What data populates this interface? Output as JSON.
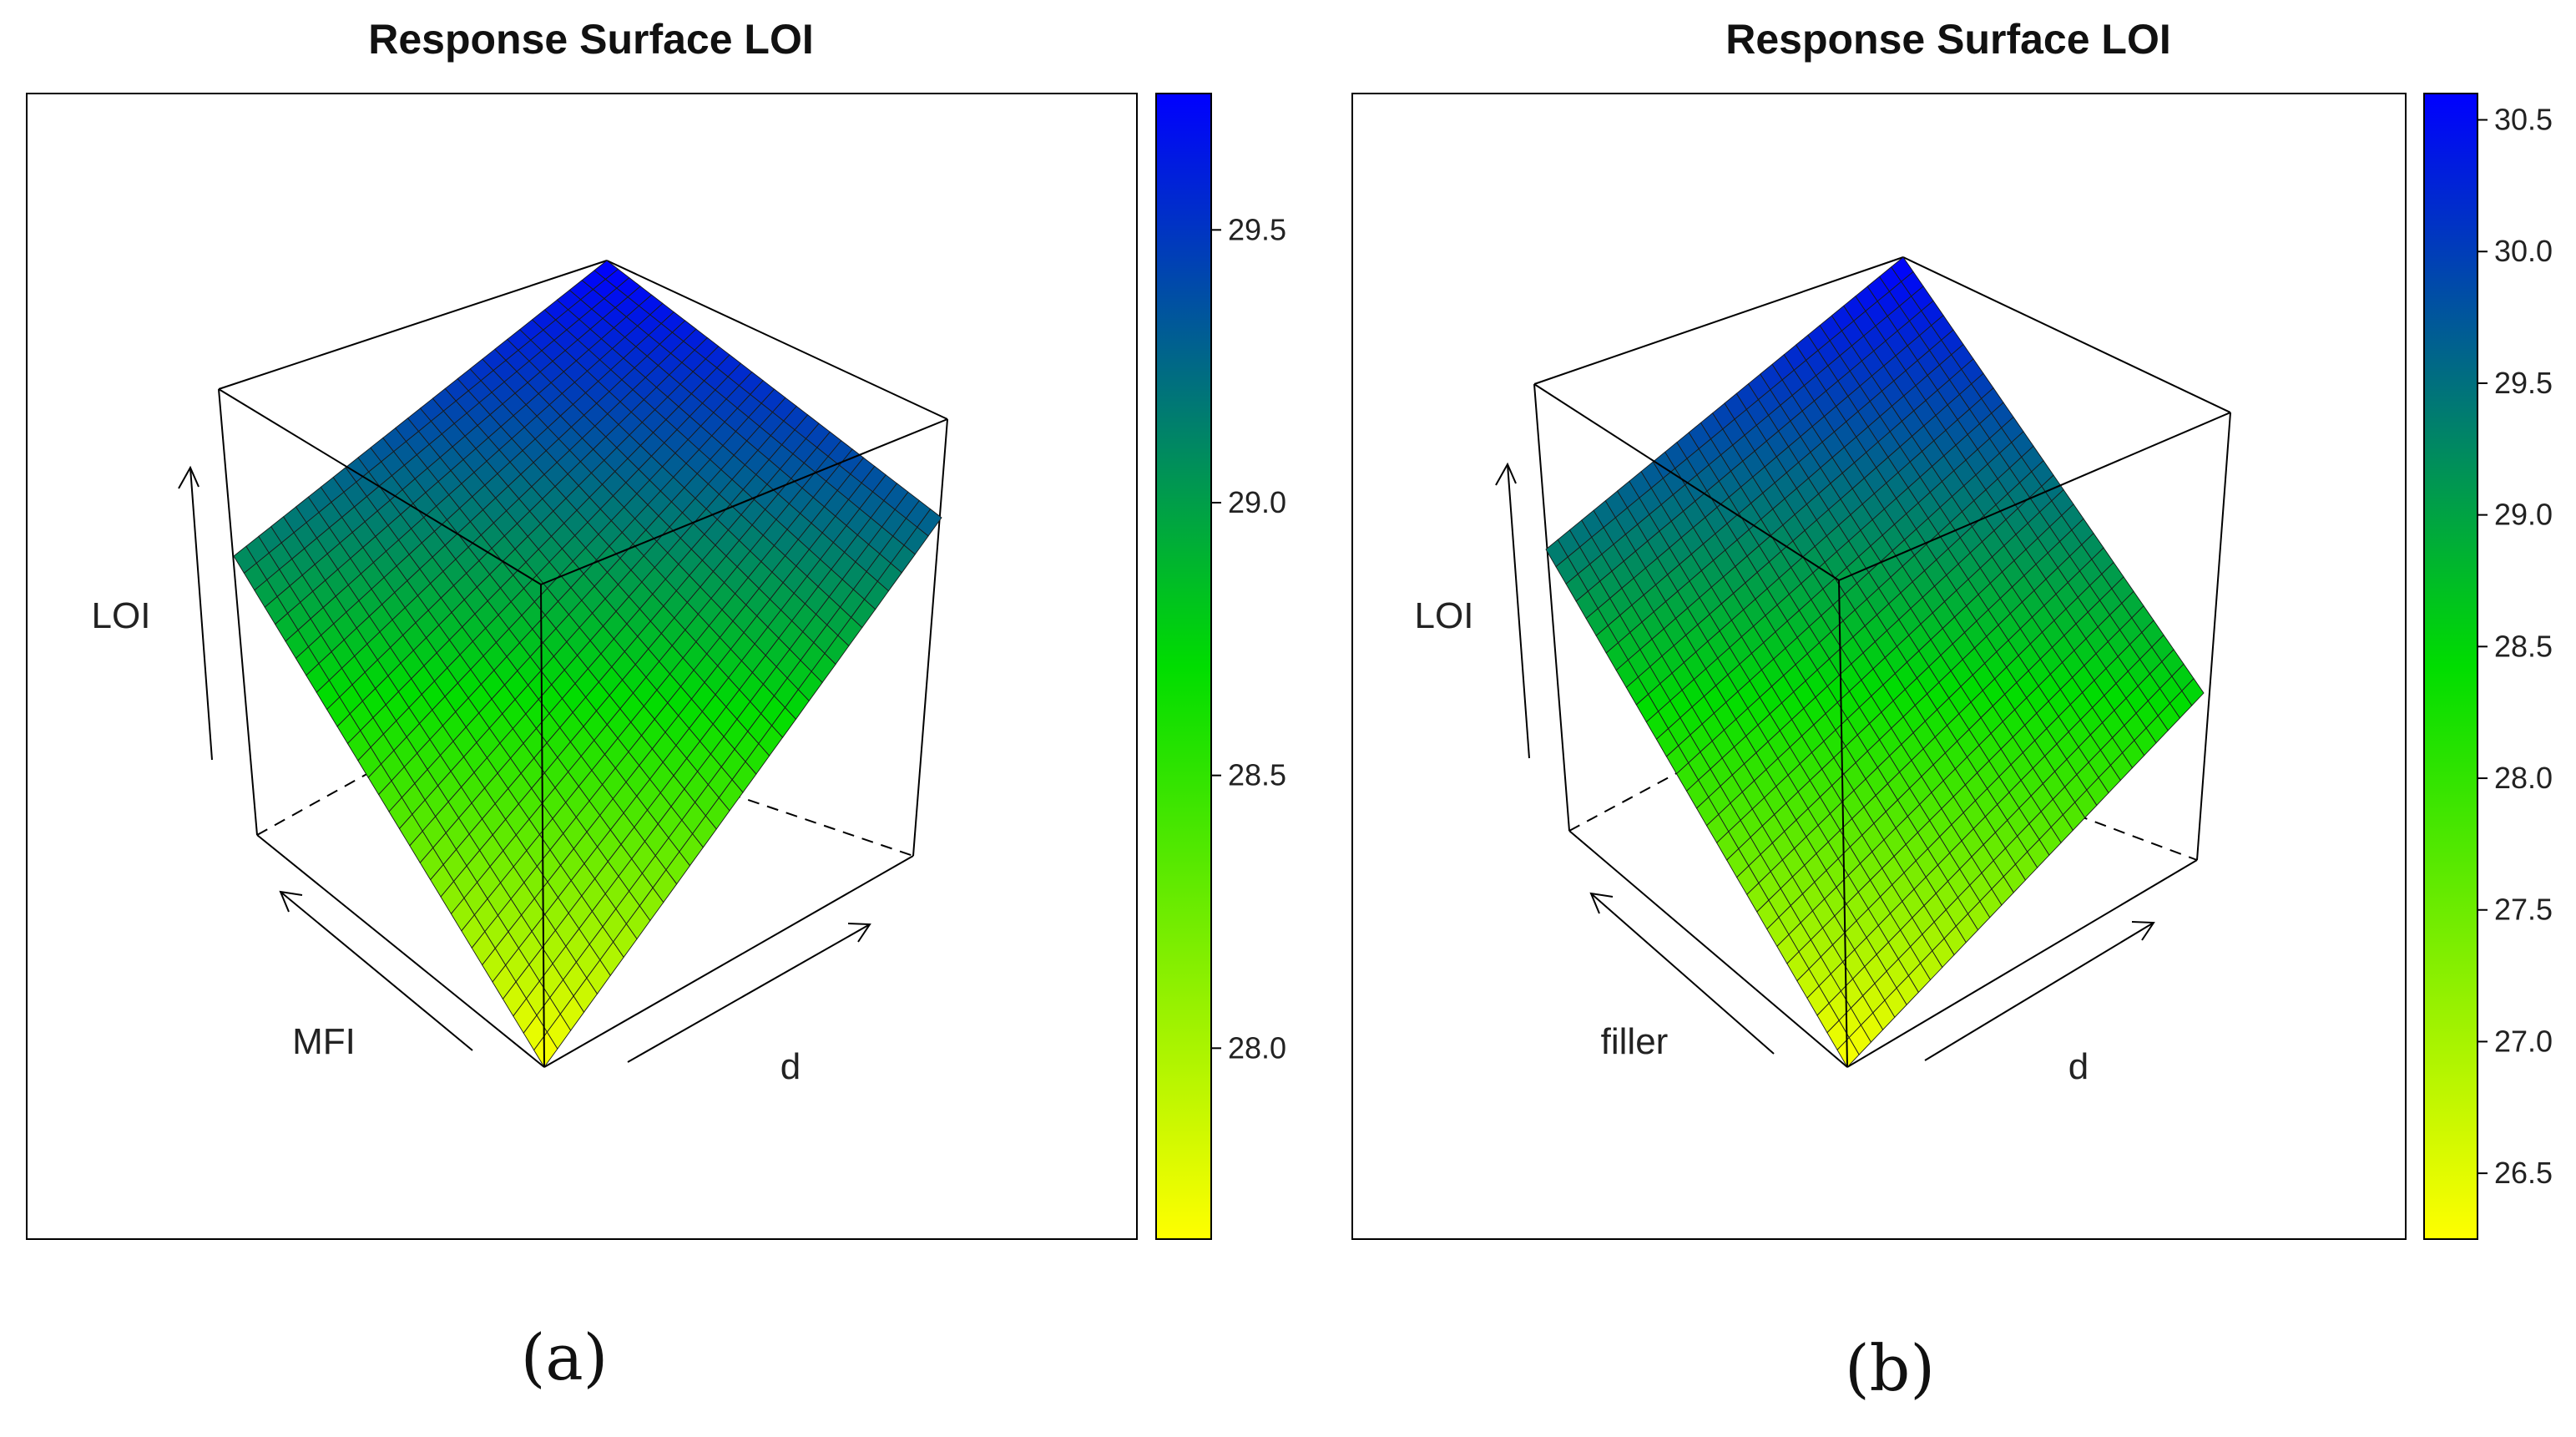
{
  "chart_data": [
    {
      "type": "surface",
      "panel": "(a)",
      "title": "Response Surface LOI",
      "axes": {
        "x": "MFI",
        "y": "d",
        "z": "LOI"
      },
      "colorbar": {
        "min": 27.65,
        "max": 29.75,
        "ticks": [
          28.0,
          28.5,
          29.0,
          29.5
        ],
        "tick_labels": [
          "28.0",
          "28.5",
          "29.0",
          "29.5"
        ]
      },
      "corner_values": {
        "front": 27.65,
        "right": 29.3,
        "back": 29.75,
        "left": 29.1
      },
      "grid_steps": 30
    },
    {
      "type": "surface",
      "panel": "(b)",
      "title": "Response Surface LOI",
      "axes": {
        "x": "filler",
        "y": "d",
        "z": "LOI"
      },
      "colorbar": {
        "min": 26.25,
        "max": 30.6,
        "ticks": [
          26.5,
          27.0,
          27.5,
          28.0,
          28.5,
          29.0,
          29.5,
          30.0,
          30.5
        ],
        "tick_labels": [
          "26.5",
          "27.0",
          "27.5",
          "28.0",
          "28.5",
          "29.0",
          "29.5",
          "30.0",
          "30.5"
        ]
      },
      "corner_values": {
        "front": 26.25,
        "right": 28.5,
        "back": 30.6,
        "left": 29.4
      },
      "grid_steps": 30
    }
  ],
  "colors": {
    "low": "#ffff00",
    "mid": "#00dd00",
    "high": "#0000ff",
    "mesh": "#1a1a1a",
    "frame": "#000000"
  }
}
